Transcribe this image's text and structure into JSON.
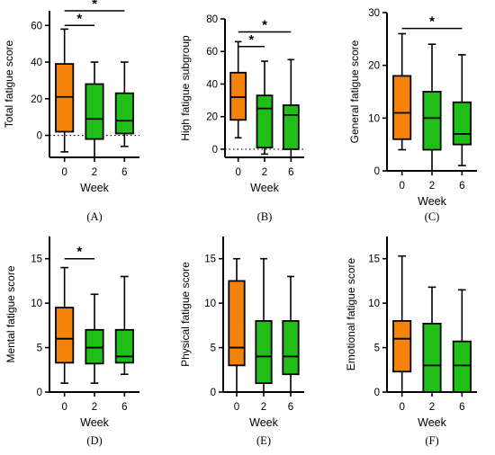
{
  "colors": {
    "baseline": "#f5820a",
    "followup": "#1fbf17",
    "stroke": "#000000"
  },
  "chart_data": [
    {
      "type": "boxplot",
      "panel_label": "(A)",
      "xlabel": "Week",
      "ylabel": "Total fatigue score",
      "categories": [
        "0",
        "2",
        "6"
      ],
      "ylim": [
        -12,
        68
      ],
      "yticks": [
        0,
        20,
        40,
        60
      ],
      "zero_dotted_line": true,
      "boxes": [
        {
          "min": -9,
          "q1": 2,
          "median": 21,
          "q3": 39,
          "max": 58
        },
        {
          "min": -12,
          "q1": -2,
          "median": 9,
          "q3": 28,
          "max": 40
        },
        {
          "min": -6,
          "q1": 1,
          "median": 8,
          "q3": 23,
          "max": 40
        }
      ],
      "significance": [
        {
          "from": 0,
          "to": 1,
          "y": 60,
          "label": "*"
        },
        {
          "from": 0,
          "to": 2,
          "y": 68,
          "label": "*"
        }
      ]
    },
    {
      "type": "boxplot",
      "panel_label": "(B)",
      "xlabel": "Week",
      "ylabel": "High fatigue subgroup",
      "categories": [
        "0",
        "2",
        "6"
      ],
      "ylim": [
        -5,
        80
      ],
      "yticks": [
        0,
        20,
        40,
        60,
        80
      ],
      "zero_dotted_line": true,
      "boxes": [
        {
          "min": 7,
          "q1": 18,
          "median": 32,
          "q3": 47,
          "max": 66
        },
        {
          "min": -3,
          "q1": 1,
          "median": 25,
          "q3": 33,
          "max": 54
        },
        {
          "min": -5,
          "q1": 0,
          "median": 21,
          "q3": 27,
          "max": 55
        }
      ],
      "significance": [
        {
          "from": 0,
          "to": 1,
          "y": 63,
          "label": "*"
        },
        {
          "from": 0,
          "to": 2,
          "y": 72,
          "label": "*"
        }
      ]
    },
    {
      "type": "boxplot",
      "panel_label": "(C)",
      "xlabel": "Week",
      "ylabel": "General fatigue score",
      "categories": [
        "0",
        "2",
        "6"
      ],
      "ylim": [
        0,
        30
      ],
      "yticks": [
        0,
        10,
        20,
        30
      ],
      "zero_dotted_line": false,
      "boxes": [
        {
          "min": 4,
          "q1": 6,
          "median": 11,
          "q3": 18,
          "max": 26
        },
        {
          "min": 0,
          "q1": 4,
          "median": 10,
          "q3": 15,
          "max": 24
        },
        {
          "min": 1,
          "q1": 5,
          "median": 7,
          "q3": 13,
          "max": 22
        }
      ],
      "significance": [
        {
          "from": 0,
          "to": 2,
          "y": 27,
          "label": "*"
        }
      ]
    },
    {
      "type": "boxplot",
      "panel_label": "(D)",
      "xlabel": "Week",
      "ylabel": "Mental fatigue score",
      "categories": [
        "0",
        "2",
        "6"
      ],
      "ylim": [
        0,
        17.5
      ],
      "yticks": [
        0,
        5,
        10,
        15
      ],
      "zero_dotted_line": false,
      "boxes": [
        {
          "min": 1,
          "q1": 3.3,
          "median": 6,
          "q3": 9.5,
          "max": 14
        },
        {
          "min": 1,
          "q1": 3.2,
          "median": 5,
          "q3": 7,
          "max": 11
        },
        {
          "min": 2,
          "q1": 3.3,
          "median": 4,
          "q3": 7,
          "max": 13
        }
      ],
      "significance": [
        {
          "from": 0,
          "to": 1,
          "y": 15,
          "label": "*"
        }
      ]
    },
    {
      "type": "boxplot",
      "panel_label": "(E)",
      "xlabel": "Week",
      "ylabel": "Physical fatigue score",
      "categories": [
        "0",
        "2",
        "6"
      ],
      "ylim": [
        0,
        17.5
      ],
      "yticks": [
        0,
        5,
        10,
        15
      ],
      "zero_dotted_line": false,
      "boxes": [
        {
          "min": 0,
          "q1": 3,
          "median": 5,
          "q3": 12.5,
          "max": 15
        },
        {
          "min": 0,
          "q1": 1,
          "median": 4,
          "q3": 8,
          "max": 15
        },
        {
          "min": 0,
          "q1": 2,
          "median": 4,
          "q3": 8,
          "max": 13
        }
      ],
      "significance": []
    },
    {
      "type": "boxplot",
      "panel_label": "(F)",
      "xlabel": "Week",
      "ylabel": "Emotional fatigue score",
      "categories": [
        "0",
        "2",
        "6"
      ],
      "ylim": [
        0,
        17.5
      ],
      "yticks": [
        0,
        5,
        10,
        15
      ],
      "zero_dotted_line": false,
      "boxes": [
        {
          "min": 0,
          "q1": 2.3,
          "median": 6,
          "q3": 8,
          "max": 15.3
        },
        {
          "min": 0,
          "q1": 0,
          "median": 3,
          "q3": 7.7,
          "max": 11.8
        },
        {
          "min": 0,
          "q1": 0,
          "median": 3,
          "q3": 5.7,
          "max": 11.5
        }
      ],
      "significance": []
    }
  ]
}
